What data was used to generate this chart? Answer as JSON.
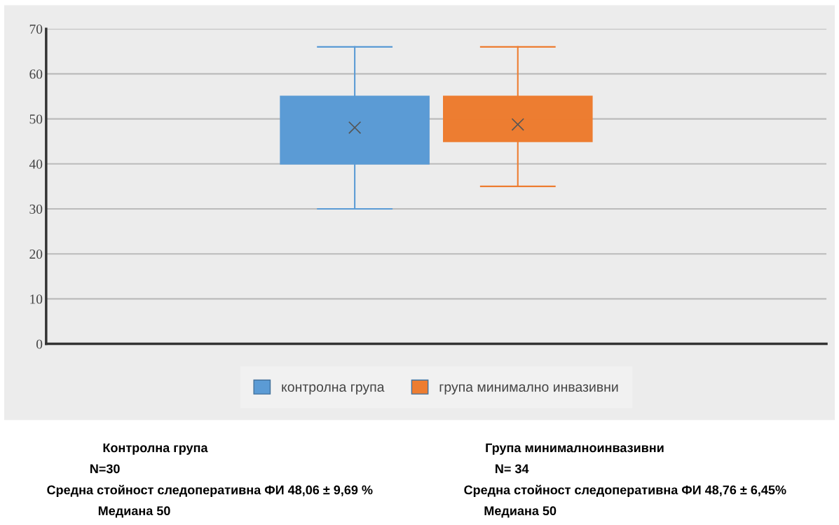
{
  "chart_data": {
    "type": "box",
    "categories": [
      null
    ],
    "series": [
      {
        "name": "контролна група",
        "color": "#5b9bd5",
        "boxes": [
          {
            "low": 30,
            "q1": 40,
            "median": 50,
            "q3": 55,
            "high": 66,
            "mean": 48.06
          }
        ]
      },
      {
        "name": "група минимално инвазивни",
        "color": "#ed7d31",
        "boxes": [
          {
            "low": 35,
            "q1": 45,
            "median": 50,
            "q3": 55,
            "high": 66,
            "mean": 48.76
          }
        ]
      }
    ],
    "ylim": [
      0,
      70
    ],
    "yticks": [
      0,
      10,
      20,
      30,
      40,
      50,
      60,
      70
    ],
    "grid": "y",
    "legend": "bottom",
    "annotations": [
      "Контролна група",
      "N=30",
      "Средна стойност следоперативна ФИ 48,06 ± 9,69 %",
      "Медиана 50",
      "Група минималноинвазивни",
      "N= 34",
      "Средна стойност следоперативна ФИ 48,76 ± 6,45%",
      "Медиана 50"
    ]
  }
}
